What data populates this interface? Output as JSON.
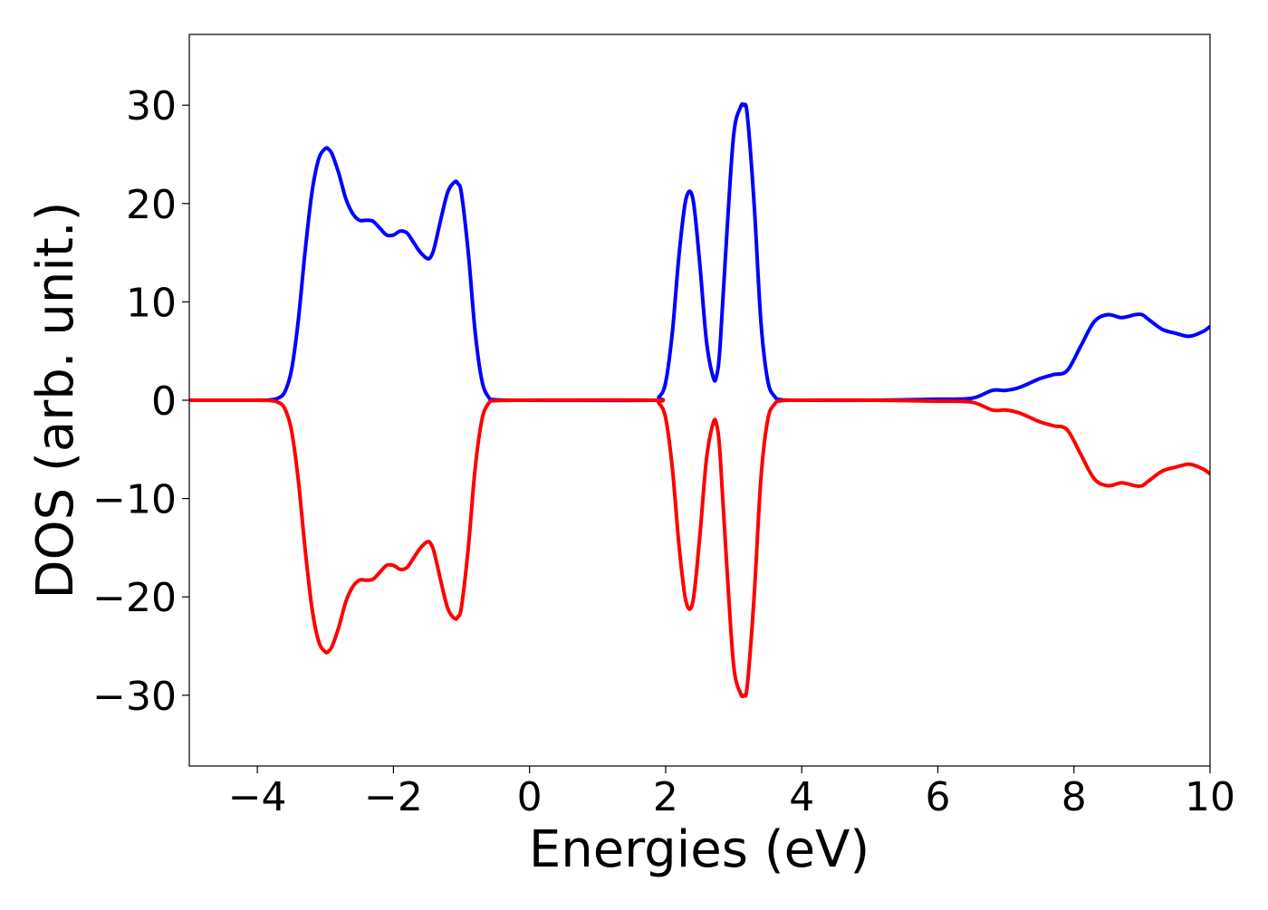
{
  "chart_data": {
    "type": "line",
    "title": "",
    "xlabel": "Energies (eV)",
    "ylabel": "DOS (arb. unit.)",
    "xlim": [
      -5,
      10
    ],
    "ylim": [
      -37.2,
      37.2
    ],
    "grid": false,
    "legend": "none",
    "x_ticks": [
      {
        "value": -4,
        "label": "−4"
      },
      {
        "value": -2,
        "label": "−2"
      },
      {
        "value": 0,
        "label": "0"
      },
      {
        "value": 2,
        "label": "2"
      },
      {
        "value": 4,
        "label": "4"
      },
      {
        "value": 6,
        "label": "6"
      },
      {
        "value": 8,
        "label": "8"
      },
      {
        "value": 10,
        "label": "10"
      }
    ],
    "y_ticks": [
      {
        "value": -30,
        "label": "−30"
      },
      {
        "value": -20,
        "label": "−20"
      },
      {
        "value": -10,
        "label": "−10"
      },
      {
        "value": 0,
        "label": "0"
      },
      {
        "value": 10,
        "label": "10"
      },
      {
        "value": 20,
        "label": "20"
      },
      {
        "value": 30,
        "label": "30"
      }
    ],
    "series": [
      {
        "color": "#0000ff",
        "sign": 1,
        "x": [
          -5,
          -4.0,
          -3.8,
          -3.7,
          -3.6,
          -3.5,
          -3.4,
          -3.3,
          -3.2,
          -3.1,
          -3.0,
          -2.95,
          -2.9,
          -2.8,
          -2.7,
          -2.6,
          -2.5,
          -2.4,
          -2.3,
          -2.2,
          -2.1,
          -2.0,
          -1.9,
          -1.8,
          -1.7,
          -1.6,
          -1.5,
          -1.45,
          -1.4,
          -1.3,
          -1.2,
          -1.1,
          -1.05,
          -1.0,
          -0.9,
          -0.8,
          -0.7,
          -0.6,
          -0.5,
          0,
          1.8,
          1.9,
          2.0,
          2.1,
          2.2,
          2.3,
          2.4,
          2.5,
          2.6,
          2.7,
          2.75,
          2.8,
          2.9,
          3.0,
          3.1,
          3.15,
          3.2,
          3.3,
          3.4,
          3.5,
          3.6,
          3.7,
          4.0,
          5.0,
          6.0,
          6.5,
          6.8,
          7.0,
          7.2,
          7.5,
          7.7,
          7.9,
          8.1,
          8.3,
          8.5,
          8.7,
          8.9,
          9.0,
          9.1,
          9.3,
          9.5,
          9.7,
          9.9,
          10.0
        ],
        "y": [
          0,
          0,
          0.05,
          0.2,
          0.8,
          3.0,
          8.0,
          15.0,
          21.0,
          24.5,
          25.6,
          25.5,
          25.0,
          23.0,
          20.5,
          19.0,
          18.3,
          18.3,
          18.2,
          17.5,
          16.8,
          16.8,
          17.2,
          17.0,
          16.0,
          15.0,
          14.4,
          14.6,
          15.5,
          18.5,
          21.2,
          22.2,
          22.0,
          21.0,
          15.0,
          7.0,
          2.0,
          0.3,
          0.05,
          0,
          0,
          0.3,
          1.8,
          7.0,
          15.0,
          20.5,
          20.5,
          14.0,
          6.0,
          2.3,
          2.5,
          5.5,
          17.0,
          27.0,
          29.8,
          30.0,
          29.0,
          20.0,
          8.0,
          2.0,
          0.4,
          0.05,
          0,
          0,
          0.1,
          0.2,
          1.0,
          1.0,
          1.3,
          2.2,
          2.6,
          3.0,
          5.5,
          8.0,
          8.7,
          8.4,
          8.7,
          8.7,
          8.2,
          7.2,
          6.8,
          6.5,
          7.0,
          7.5
        ]
      },
      {
        "color": "#ff0000",
        "sign": -1,
        "x": [
          -5,
          -4.0,
          -3.8,
          -3.7,
          -3.6,
          -3.5,
          -3.4,
          -3.3,
          -3.2,
          -3.1,
          -3.0,
          -2.95,
          -2.9,
          -2.8,
          -2.7,
          -2.6,
          -2.5,
          -2.4,
          -2.3,
          -2.2,
          -2.1,
          -2.0,
          -1.9,
          -1.8,
          -1.7,
          -1.6,
          -1.5,
          -1.45,
          -1.4,
          -1.3,
          -1.2,
          -1.1,
          -1.05,
          -1.0,
          -0.9,
          -0.8,
          -0.7,
          -0.6,
          -0.5,
          0,
          1.8,
          1.9,
          2.0,
          2.1,
          2.2,
          2.3,
          2.4,
          2.5,
          2.6,
          2.7,
          2.75,
          2.8,
          2.9,
          3.0,
          3.1,
          3.15,
          3.2,
          3.3,
          3.4,
          3.5,
          3.6,
          3.7,
          4.0,
          5.0,
          6.0,
          6.5,
          6.8,
          7.0,
          7.2,
          7.5,
          7.7,
          7.9,
          8.1,
          8.3,
          8.5,
          8.7,
          8.9,
          9.0,
          9.1,
          9.3,
          9.5,
          9.7,
          9.9,
          10.0
        ],
        "y": [
          0,
          0,
          0.05,
          0.2,
          0.8,
          3.0,
          8.0,
          15.0,
          21.0,
          24.5,
          25.6,
          25.5,
          25.0,
          23.0,
          20.5,
          19.0,
          18.3,
          18.3,
          18.2,
          17.5,
          16.8,
          16.8,
          17.2,
          17.0,
          16.0,
          15.0,
          14.4,
          14.6,
          15.5,
          18.5,
          21.2,
          22.2,
          22.0,
          21.0,
          15.0,
          7.0,
          2.0,
          0.3,
          0.05,
          0,
          0,
          0.3,
          1.8,
          7.0,
          15.0,
          20.5,
          20.5,
          14.0,
          6.0,
          2.3,
          2.5,
          5.5,
          17.0,
          27.0,
          29.8,
          30.0,
          29.0,
          20.0,
          8.0,
          2.0,
          0.4,
          0.05,
          0,
          0,
          0.1,
          0.2,
          1.0,
          1.0,
          1.3,
          2.2,
          2.6,
          3.0,
          5.5,
          8.0,
          8.7,
          8.4,
          8.7,
          8.7,
          8.2,
          7.2,
          6.8,
          6.5,
          7.0,
          7.5
        ]
      }
    ]
  }
}
